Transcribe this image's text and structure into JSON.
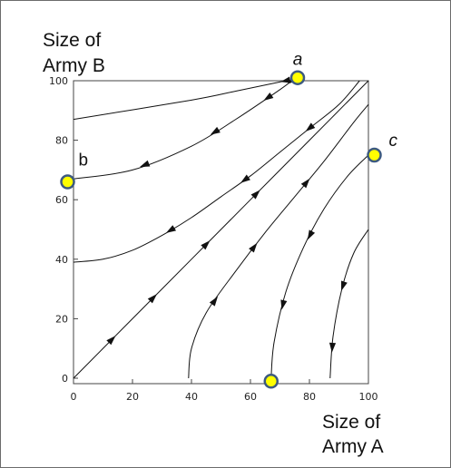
{
  "chart_data": {
    "type": "line",
    "ylabel_lines": [
      "Size of",
      "Army B"
    ],
    "xlabel_lines": [
      "Size of",
      "Army A"
    ],
    "xlim": [
      0,
      100
    ],
    "ylim": [
      0,
      100
    ],
    "x_ticks": [
      0,
      20,
      40,
      60,
      80,
      100
    ],
    "y_ticks": [
      0,
      20,
      40,
      60,
      80,
      100
    ],
    "grid": false,
    "trajectories": [
      {
        "x": [
          0,
          40,
          55,
          72
        ],
        "y": [
          87,
          93.5,
          96.5,
          100
        ]
      },
      {
        "x": [
          0,
          20,
          40,
          55,
          70,
          74
        ],
        "y": [
          67,
          70,
          78,
          87,
          97,
          100
        ]
      },
      {
        "x": [
          0,
          10,
          20,
          30,
          40,
          50,
          60,
          70,
          80,
          90,
          97
        ],
        "y": [
          39,
          40,
          43,
          48,
          54,
          61,
          68,
          76,
          84,
          92,
          100
        ]
      },
      {
        "x": [
          0,
          20,
          40,
          60,
          80,
          100
        ],
        "y": [
          0,
          20,
          40,
          60,
          80,
          100
        ]
      },
      {
        "x": [
          39,
          40,
          45,
          55,
          65,
          75,
          85,
          95,
          100
        ],
        "y": [
          0,
          10,
          22,
          36,
          49,
          61,
          73,
          86,
          92
        ]
      },
      {
        "x": [
          67,
          68,
          72,
          78,
          85,
          93,
          100
        ],
        "y": [
          0,
          12,
          29,
          44,
          57,
          68,
          75
        ]
      },
      {
        "x": [
          87,
          88,
          91,
          95,
          100
        ],
        "y": [
          0,
          14,
          30,
          42,
          50
        ]
      }
    ],
    "arrows": [
      {
        "trajectory": 0,
        "at": 1,
        "direction": "backward"
      },
      {
        "trajectory": 1,
        "at": 0.3,
        "direction": "backward"
      },
      {
        "trajectory": 1,
        "at": 0.62,
        "direction": "backward"
      },
      {
        "trajectory": 1,
        "at": 0.88,
        "direction": "backward"
      },
      {
        "trajectory": 1,
        "at": 1.08,
        "direction": "backward"
      },
      {
        "trajectory": 2,
        "at": 0.3,
        "direction": "backward"
      },
      {
        "trajectory": 2,
        "at": 0.56,
        "direction": "backward"
      },
      {
        "trajectory": 2,
        "at": 0.8,
        "direction": "backward"
      },
      {
        "trajectory": 3,
        "at": 0.62,
        "direction": "forward"
      },
      {
        "trajectory": 3,
        "at": 0.45,
        "direction": "forward"
      },
      {
        "trajectory": 3,
        "at": 0.27,
        "direction": "forward"
      },
      {
        "trajectory": 3,
        "at": 0.13,
        "direction": "forward"
      },
      {
        "trajectory": 4,
        "at": 0.25,
        "direction": "forward"
      },
      {
        "trajectory": 4,
        "at": 0.45,
        "direction": "forward"
      },
      {
        "trajectory": 4,
        "at": 0.7,
        "direction": "forward"
      },
      {
        "trajectory": 5,
        "at": 0.3,
        "direction": "backward"
      },
      {
        "trajectory": 5,
        "at": 0.6,
        "direction": "backward"
      },
      {
        "trajectory": 6,
        "at": 0.2,
        "direction": "backward"
      },
      {
        "trajectory": 6,
        "at": 0.6,
        "direction": "backward"
      }
    ],
    "highlighted_points": [
      {
        "label": "a",
        "italic": true,
        "x": 76,
        "y": 101,
        "label_pos": "above"
      },
      {
        "label": "b",
        "italic": false,
        "x": -2,
        "y": 66,
        "label_pos": "upper-right"
      },
      {
        "label": "c",
        "italic": true,
        "x": 102,
        "y": 75,
        "label_pos": "right"
      },
      {
        "label": "",
        "italic": false,
        "x": 67,
        "y": -1,
        "label_pos": "none"
      }
    ],
    "colors": {
      "line": "#111111",
      "point_fill": "#ffff00",
      "point_stroke": "#3d5a80",
      "axis": "#444444"
    }
  }
}
